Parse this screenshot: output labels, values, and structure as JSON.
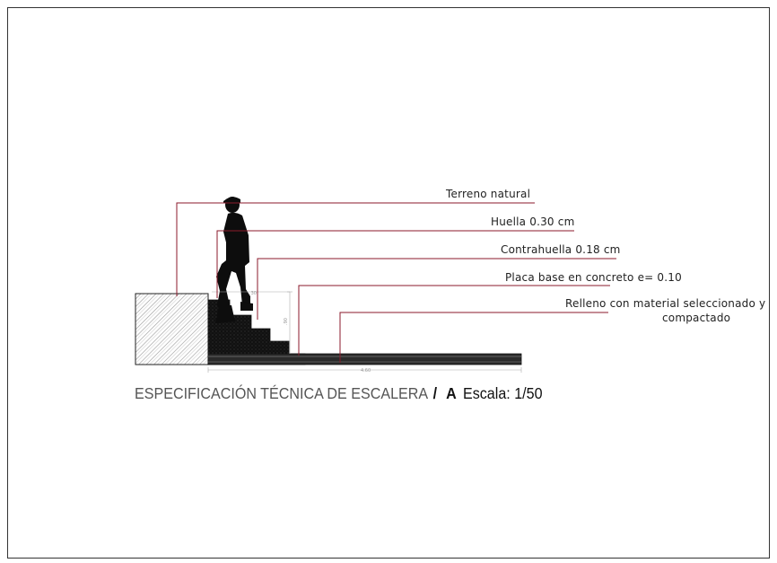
{
  "labels": {
    "terreno": "Terreno natural",
    "huella": "Huella 0.30 cm",
    "contrahuella": "Contrahuella 0.18 cm",
    "placa": "Placa base en concreto e= 0.10",
    "relleno_line1": "Relleno con material seleccionado y",
    "relleno_line2": "compactado"
  },
  "caption": {
    "title": "ESPECIFICACIÓN TÉCNICA DE ESCALERA",
    "separator": "/",
    "view_id": "A",
    "scale": "Escala: 1/50"
  },
  "dimensions": {
    "total_length": "4.60",
    "height": ".90",
    "step": ".30"
  },
  "colors": {
    "leader_line": "#8b1a2b",
    "frame": "#333333",
    "fill_dark": "#1a1a1a",
    "slab": "#555555"
  }
}
